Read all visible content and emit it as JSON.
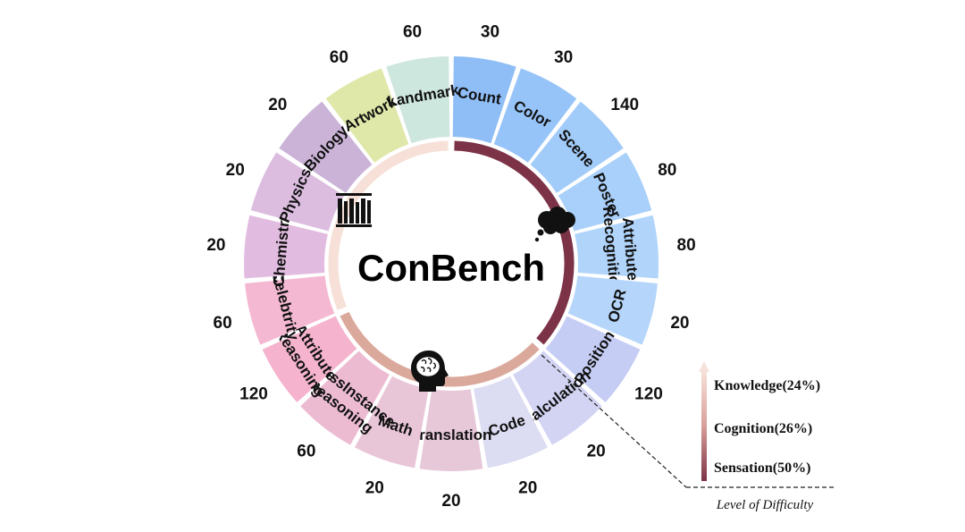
{
  "title": "ConBench",
  "categories": [
    {
      "name": "Count",
      "lines": [
        "Count"
      ],
      "value": "30",
      "color": "#8fbdf6",
      "level": "Sensation"
    },
    {
      "name": "Color",
      "lines": [
        "Color"
      ],
      "value": "30",
      "color": "#97c4f8",
      "level": "Sensation"
    },
    {
      "name": "Scene",
      "lines": [
        "Scene"
      ],
      "value": "140",
      "color": "#a1cbf9",
      "level": "Sensation"
    },
    {
      "name": "Poster",
      "lines": [
        "Poster"
      ],
      "value": "80",
      "color": "#a9d0fa",
      "level": "Sensation"
    },
    {
      "name": "Attribute Recognition",
      "lines": [
        "Attribute",
        "Recognition"
      ],
      "value": "80",
      "color": "#b0d4fa",
      "level": "Sensation"
    },
    {
      "name": "OCR",
      "lines": [
        "OCR"
      ],
      "value": "20",
      "color": "#b5d6fa",
      "level": "Sensation"
    },
    {
      "name": "Position",
      "lines": [
        "Position"
      ],
      "value": "120",
      "color": "#c6cdf5",
      "level": "Sensation"
    },
    {
      "name": "Calculation",
      "lines": [
        "Calculation"
      ],
      "value": "20",
      "color": "#d3d4f3",
      "level": "Cognition"
    },
    {
      "name": "Code",
      "lines": [
        "Code"
      ],
      "value": "20",
      "color": "#dcdcf2",
      "level": "Cognition"
    },
    {
      "name": "Translation",
      "lines": [
        "Translation"
      ],
      "value": "20",
      "color": "#e6c8d9",
      "level": "Cognition"
    },
    {
      "name": "Math",
      "lines": [
        "Math"
      ],
      "value": "20",
      "color": "#e9c5d8",
      "level": "Cognition"
    },
    {
      "name": "CrossInstance Reasoning",
      "lines": [
        "CrossInstance",
        "Reasoning"
      ],
      "value": "60",
      "color": "#ecbbd2",
      "level": "Cognition"
    },
    {
      "name": "Attribute Reasoning",
      "lines": [
        "Attribute",
        "Reasoning"
      ],
      "value": "120",
      "color": "#f5b3cd",
      "level": "Cognition"
    },
    {
      "name": "Celebtrity",
      "lines": [
        "Celebtrity"
      ],
      "value": "60",
      "color": "#f5b8d2",
      "level": "Knowledge"
    },
    {
      "name": "Chemistry",
      "lines": [
        "Chemistry"
      ],
      "value": "20",
      "color": "#e2bce0",
      "level": "Knowledge"
    },
    {
      "name": "Physics",
      "lines": [
        "Physics"
      ],
      "value": "20",
      "color": "#dcbde0",
      "level": "Knowledge"
    },
    {
      "name": "Biology",
      "lines": [
        "Biology"
      ],
      "value": "20",
      "color": "#cbb3d8",
      "level": "Knowledge"
    },
    {
      "name": "Artwork",
      "lines": [
        "Artwork"
      ],
      "value": "60",
      "color": "#dfe8a8",
      "level": "Knowledge"
    },
    {
      "name": "Landmark",
      "lines": [
        "Landmark"
      ],
      "value": "60",
      "color": "#cde6de",
      "level": "Knowledge"
    }
  ],
  "levels": [
    {
      "name": "Sensation",
      "color": "#7d3347"
    },
    {
      "name": "Cognition",
      "color": "#dba89c"
    },
    {
      "name": "Knowledge",
      "color": "#f6e0d8"
    }
  ],
  "legend": {
    "items": [
      "Knowledge(24%)",
      "Cognition(26%)",
      "Sensation(50%)"
    ],
    "caption": "Level of Difficulty"
  },
  "icons": {
    "sensation": "thought-cloud-icon",
    "cognition": "brain-head-icon",
    "knowledge": "bookshelf-icon"
  }
}
